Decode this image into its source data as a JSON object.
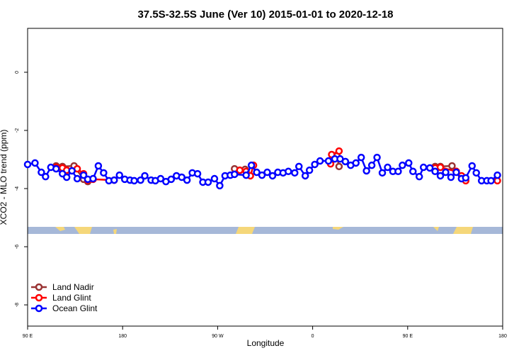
{
  "chart_data": {
    "type": "line",
    "title": "37.5S-32.5S June (Ver 10)   2015-01-01 to 2020-12-18",
    "xlabel": "Longitude",
    "ylabel": "XCO2 - MLO trend (ppm)",
    "xlim": [
      90,
      540
    ],
    "ylim": [
      -8.73,
      1.51
    ],
    "xticks": [
      {
        "value": 90,
        "label": "90 E"
      },
      180,
      {
        "value": 270,
        "label": "90 W"
      },
      {
        "value": 360,
        "label": "0"
      },
      {
        "value": 450,
        "label": "90 E"
      },
      {
        "value": 540,
        "label": "180"
      }
    ],
    "yticks": [
      0,
      -2,
      -4,
      -6,
      -8
    ],
    "legend": "bottomleft",
    "series": [
      {
        "name": "Land Nadir",
        "color": "#993333",
        "x": [
          117,
          123,
          134,
          143,
          147,
          null,
          286,
          291,
          296,
          null,
          377,
          383,
          385,
          null,
          476,
          481,
          492,
          496,
          504
        ],
        "values": [
          -3.22,
          -3.24,
          -3.22,
          -3.68,
          -3.76,
          null,
          -3.32,
          -3.37,
          -3.34,
          null,
          -3.12,
          -2.88,
          -3.24,
          null,
          -3.24,
          -3.24,
          -3.22,
          -3.41,
          -3.68
        ]
      },
      {
        "name": "Land Glint",
        "color": "#ff0000",
        "x": [
          117,
          123,
          127,
          137,
          143,
          147,
          152,
          172,
          null,
          291,
          297,
          301,
          304,
          null,
          377,
          378,
          385,
          null,
          476,
          481,
          496,
          501,
          505,
          null,
          535
        ],
        "values": [
          -3.27,
          -3.29,
          -3.37,
          -3.32,
          -3.49,
          -3.71,
          -3.68,
          -3.71,
          null,
          -3.37,
          -3.41,
          -3.56,
          -3.2,
          null,
          -3.15,
          -2.83,
          -2.71,
          null,
          -3.29,
          -3.27,
          -3.41,
          -3.56,
          -3.73,
          null,
          -3.73
        ]
      },
      {
        "name": "Ocean Glint",
        "color": "#0000ff",
        "x": [
          90,
          97,
          103,
          107,
          112,
          117,
          123,
          127,
          132,
          137,
          143,
          147,
          152,
          157,
          162,
          167,
          172,
          177,
          182,
          187,
          191,
          197,
          201,
          207,
          211,
          216,
          221,
          226,
          231,
          236,
          241,
          246,
          251,
          256,
          261,
          267,
          272,
          277,
          282,
          286,
          297,
          302,
          307,
          312,
          317,
          322,
          327,
          332,
          337,
          343,
          347,
          353,
          357,
          362,
          367,
          375,
          381,
          386,
          391,
          396,
          401,
          406,
          411,
          416,
          421,
          426,
          431,
          436,
          441,
          445,
          451,
          455,
          461,
          465,
          471,
          476,
          481,
          486,
          491,
          496,
          501,
          505,
          511,
          515,
          520,
          525,
          529,
          535
        ],
        "values": [
          -3.17,
          -3.12,
          -3.44,
          -3.59,
          -3.27,
          -3.32,
          -3.49,
          -3.61,
          -3.39,
          -3.66,
          -3.54,
          -3.68,
          -3.66,
          -3.22,
          -3.46,
          -3.73,
          -3.71,
          -3.54,
          -3.68,
          -3.71,
          -3.73,
          -3.71,
          -3.56,
          -3.71,
          -3.73,
          -3.66,
          -3.76,
          -3.68,
          -3.56,
          -3.61,
          -3.71,
          -3.46,
          -3.49,
          -3.78,
          -3.78,
          -3.66,
          -3.9,
          -3.56,
          -3.54,
          -3.51,
          -3.54,
          -3.2,
          -3.44,
          -3.54,
          -3.44,
          -3.56,
          -3.44,
          -3.46,
          -3.41,
          -3.46,
          -3.24,
          -3.56,
          -3.37,
          -3.17,
          -3.05,
          -3.05,
          -2.98,
          -2.98,
          -3.07,
          -3.2,
          -3.12,
          -2.93,
          -3.39,
          -3.2,
          -2.93,
          -3.46,
          -3.27,
          -3.41,
          -3.41,
          -3.2,
          -3.12,
          -3.41,
          -3.59,
          -3.27,
          -3.29,
          -3.41,
          -3.56,
          -3.44,
          -3.61,
          -3.44,
          -3.66,
          -3.63,
          -3.22,
          -3.46,
          -3.73,
          -3.73,
          -3.73,
          -3.54
        ]
      }
    ]
  }
}
